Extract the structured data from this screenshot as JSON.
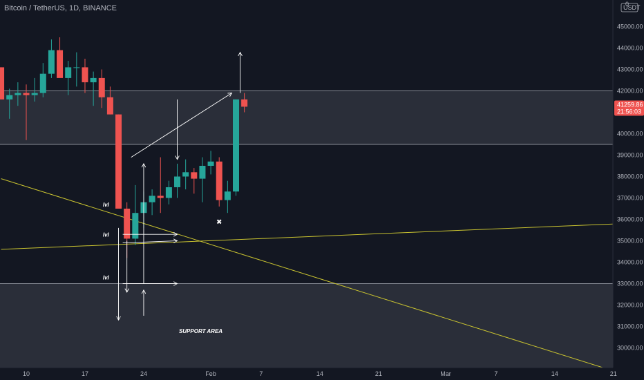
{
  "header": {
    "title": "Bitcoin / TetherUS, 1D, BINANCE"
  },
  "currency": "USDT",
  "currency_extra": "0",
  "current_price": {
    "price": "41259.86",
    "countdown": "21:56:03"
  },
  "colors": {
    "background": "#131722",
    "up": "#26a69a",
    "down": "#ef5350",
    "zone": "#2a2e39",
    "trendline": "#c9c330",
    "annotation": "#ffffff",
    "axis_text": "#b2b5be"
  },
  "chart_data": {
    "type": "candlestick",
    "ylim": [
      29000,
      46000
    ],
    "y_ticks": [
      30000,
      31000,
      32000,
      33000,
      34000,
      35000,
      36000,
      37000,
      38000,
      39000,
      40000,
      41000,
      42000,
      43000,
      44000,
      45000
    ],
    "x_ticks": [
      {
        "label": "10",
        "day": 0
      },
      {
        "label": "17",
        "day": 7
      },
      {
        "label": "24",
        "day": 14
      },
      {
        "label": "Feb",
        "day": 22
      },
      {
        "label": "7",
        "day": 28
      },
      {
        "label": "14",
        "day": 35
      },
      {
        "label": "21",
        "day": 42
      },
      {
        "label": "Mar",
        "day": 50
      },
      {
        "label": "7",
        "day": 56
      },
      {
        "label": "14",
        "day": 63
      },
      {
        "label": "21",
        "day": 70
      }
    ],
    "candles": [
      {
        "day": -3,
        "o": 43100,
        "h": 43100,
        "l": 41600,
        "c": 41600
      },
      {
        "day": -2,
        "o": 41600,
        "h": 42100,
        "l": 40700,
        "c": 41800
      },
      {
        "day": -1,
        "o": 41800,
        "h": 42400,
        "l": 41300,
        "c": 41900
      },
      {
        "day": 0,
        "o": 41900,
        "h": 42300,
        "l": 39700,
        "c": 41800
      },
      {
        "day": 1,
        "o": 41800,
        "h": 42600,
        "l": 41500,
        "c": 41900
      },
      {
        "day": 2,
        "o": 41900,
        "h": 43300,
        "l": 41700,
        "c": 42800
      },
      {
        "day": 3,
        "o": 42800,
        "h": 44400,
        "l": 42600,
        "c": 43900
      },
      {
        "day": 4,
        "o": 43900,
        "h": 44500,
        "l": 42700,
        "c": 42600
      },
      {
        "day": 5,
        "o": 42600,
        "h": 43400,
        "l": 41800,
        "c": 43100
      },
      {
        "day": 6,
        "o": 43100,
        "h": 43800,
        "l": 42200,
        "c": 43100
      },
      {
        "day": 7,
        "o": 43100,
        "h": 43500,
        "l": 41900,
        "c": 42400
      },
      {
        "day": 8,
        "o": 42400,
        "h": 42900,
        "l": 41300,
        "c": 42600
      },
      {
        "day": 9,
        "o": 42600,
        "h": 43000,
        "l": 41200,
        "c": 41700
      },
      {
        "day": 10,
        "o": 41700,
        "h": 42200,
        "l": 40900,
        "c": 40900
      },
      {
        "day": 11,
        "o": 40900,
        "h": 40900,
        "l": 36500,
        "c": 36500
      },
      {
        "day": 12,
        "o": 36500,
        "h": 36800,
        "l": 34200,
        "c": 35100
      },
      {
        "day": 13,
        "o": 35100,
        "h": 37600,
        "l": 34800,
        "c": 36300
      },
      {
        "day": 14,
        "o": 36300,
        "h": 37300,
        "l": 35600,
        "c": 36800
      },
      {
        "day": 15,
        "o": 36800,
        "h": 37400,
        "l": 36200,
        "c": 37100
      },
      {
        "day": 16,
        "o": 37100,
        "h": 38900,
        "l": 36300,
        "c": 37000
      },
      {
        "day": 17,
        "o": 37000,
        "h": 37800,
        "l": 36700,
        "c": 37500
      },
      {
        "day": 18,
        "o": 37500,
        "h": 38600,
        "l": 37000,
        "c": 38000
      },
      {
        "day": 19,
        "o": 38000,
        "h": 38800,
        "l": 37400,
        "c": 38200
      },
      {
        "day": 20,
        "o": 38200,
        "h": 38400,
        "l": 37200,
        "c": 37900
      },
      {
        "day": 21,
        "o": 37900,
        "h": 38900,
        "l": 36800,
        "c": 38500
      },
      {
        "day": 22,
        "o": 38500,
        "h": 39200,
        "l": 38100,
        "c": 38700
      },
      {
        "day": 23,
        "o": 38700,
        "h": 38900,
        "l": 36600,
        "c": 36900
      },
      {
        "day": 24,
        "o": 36900,
        "h": 37800,
        "l": 36300,
        "c": 37300
      },
      {
        "day": 25,
        "o": 37300,
        "h": 41600,
        "l": 37100,
        "c": 41600
      },
      {
        "day": 26,
        "o": 41600,
        "h": 41900,
        "l": 41000,
        "c": 41260
      }
    ],
    "zones": [
      {
        "from": 39500,
        "to": 42000
      },
      {
        "from": 29000,
        "to": 33000
      }
    ],
    "trendlines": [
      {
        "from": {
          "day": -3,
          "price": 37900
        },
        "to": {
          "day": 71,
          "price": 28800
        }
      },
      {
        "from": {
          "day": -3,
          "price": 34600
        },
        "to": {
          "day": 71,
          "price": 35800
        }
      }
    ],
    "arrows": [
      {
        "from": {
          "day": 11,
          "price": 35600
        },
        "to": {
          "day": 11,
          "price": 31300
        }
      },
      {
        "from": {
          "day": 12,
          "price": 35000
        },
        "to": {
          "day": 12,
          "price": 32600
        }
      },
      {
        "from": {
          "day": 14,
          "price": 31500
        },
        "to": {
          "day": 14,
          "price": 32700
        }
      },
      {
        "from": {
          "day": 14,
          "price": 33000
        },
        "to": {
          "day": 14,
          "price": 38600
        }
      },
      {
        "from": {
          "day": 18,
          "price": 41600
        },
        "to": {
          "day": 18,
          "price": 38800
        }
      },
      {
        "from": {
          "day": 12.5,
          "price": 38900
        },
        "to": {
          "day": 24.5,
          "price": 41900
        }
      },
      {
        "from": {
          "day": 25.5,
          "price": 41900
        },
        "to": {
          "day": 25.5,
          "price": 43800
        }
      },
      {
        "from": {
          "day": 11.5,
          "price": 35300
        },
        "to": {
          "day": 18,
          "price": 35300
        }
      },
      {
        "from": {
          "day": 11.5,
          "price": 34900
        },
        "to": {
          "day": 18,
          "price": 35000
        }
      },
      {
        "from": {
          "day": 11.5,
          "price": 33000
        },
        "to": {
          "day": 18,
          "price": 33000
        }
      }
    ],
    "labels": [
      {
        "text": "lvl",
        "day": 9.5,
        "price": 36600
      },
      {
        "text": "lvl",
        "day": 9.5,
        "price": 35200
      },
      {
        "text": "lvl",
        "day": 9.5,
        "price": 33200
      },
      {
        "text": "SUPPORT AREA",
        "day": 20.8,
        "price": 30700
      }
    ],
    "markers": [
      {
        "symbol": "✖",
        "day": 23,
        "price": 35900
      }
    ]
  }
}
